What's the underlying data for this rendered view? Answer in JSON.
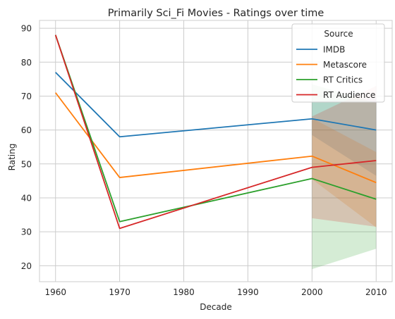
{
  "chart_data": {
    "type": "line",
    "title": "Primarily Sci_Fi Movies - Ratings over time",
    "xlabel": "Decade",
    "ylabel": "Rating",
    "x": [
      1960,
      1970,
      2000,
      2010
    ],
    "xticks": [
      1960,
      1970,
      1980,
      1990,
      2000,
      2010
    ],
    "yticks": [
      20,
      30,
      40,
      50,
      60,
      70,
      80,
      90
    ],
    "xlim": [
      1957.5,
      2012.5
    ],
    "ylim": [
      15.3,
      92.3
    ],
    "grid": true,
    "legend": {
      "title": "Source",
      "placement": "top-right"
    },
    "series": [
      {
        "name": "IMDB",
        "color": "#1f77b4",
        "values": [
          77,
          58,
          63.3,
          60
        ],
        "ci_low": [
          null,
          null,
          58.5,
          46.5
        ],
        "ci_high": [
          null,
          null,
          68.5,
          69.5
        ]
      },
      {
        "name": "Metascore",
        "color": "#ff7f0e",
        "values": [
          71,
          46,
          52.3,
          44.5
        ],
        "ci_low": [
          null,
          null,
          45.5,
          31.3
        ],
        "ci_high": [
          null,
          null,
          63.5,
          53.5
        ]
      },
      {
        "name": "RT Critics",
        "color": "#2ca02c",
        "values": [
          88,
          33,
          45.7,
          39.6
        ],
        "ci_low": [
          null,
          null,
          19,
          25
        ],
        "ci_high": [
          null,
          null,
          73.5,
          68
        ]
      },
      {
        "name": "RT Audience",
        "color": "#d62728",
        "values": [
          88,
          31,
          49,
          51
        ],
        "ci_low": [
          null,
          null,
          34,
          31.5
        ],
        "ci_high": [
          null,
          null,
          64,
          73
        ]
      }
    ]
  }
}
